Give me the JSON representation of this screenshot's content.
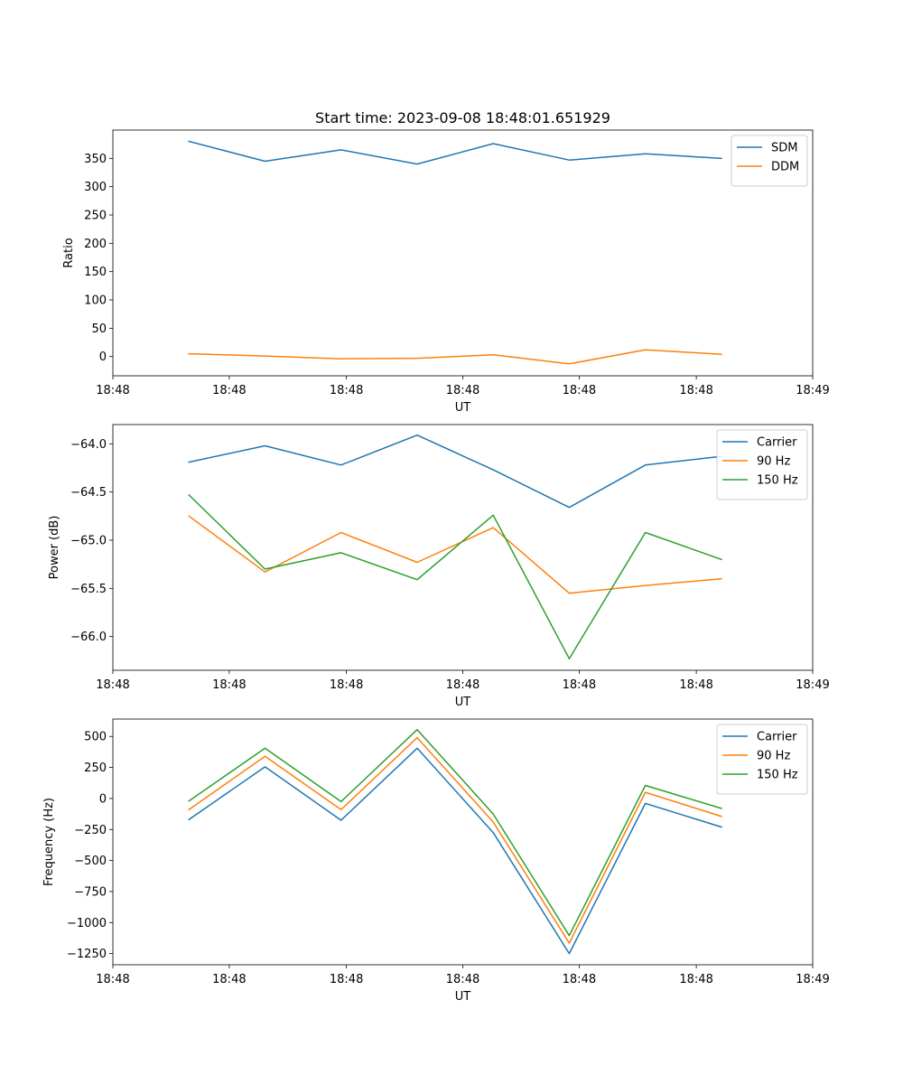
{
  "figure_title": "Start time: 2023-09-08 18:48:01.651929",
  "colors": {
    "c0": "#1f77b4",
    "c1": "#ff7f0e",
    "c2": "#2ca02c"
  },
  "chart_data": [
    {
      "type": "line",
      "title": "Start time: 2023-09-08 18:48:01.651929",
      "xlabel": "UT",
      "ylabel": "Ratio",
      "x": [
        1,
        2,
        3,
        4,
        5,
        6,
        7,
        8
      ],
      "xlim": [
        0,
        9.2
      ],
      "x_ticks": [
        {
          "value": 0,
          "label": "18:48"
        },
        {
          "value": 1.53,
          "label": "18:48"
        },
        {
          "value": 3.07,
          "label": "18:48"
        },
        {
          "value": 4.6,
          "label": "18:48"
        },
        {
          "value": 6.13,
          "label": "18:48"
        },
        {
          "value": 7.67,
          "label": "18:48"
        },
        {
          "value": 9.2,
          "label": "18:49"
        }
      ],
      "ylim": [
        -34,
        400
      ],
      "y_ticks": [
        {
          "value": 350,
          "label": "350"
        },
        {
          "value": 300,
          "label": "300"
        },
        {
          "value": 250,
          "label": "250"
        },
        {
          "value": 200,
          "label": "200"
        },
        {
          "value": 150,
          "label": "150"
        },
        {
          "value": 100,
          "label": "100"
        },
        {
          "value": 50,
          "label": "50"
        },
        {
          "value": 0,
          "label": "0"
        }
      ],
      "legend_position": "top-right",
      "series": [
        {
          "name": "SDM",
          "color": "#1f77b4",
          "values": [
            380,
            345,
            365,
            340,
            376,
            347,
            358,
            350
          ]
        },
        {
          "name": "DDM",
          "color": "#ff7f0e",
          "values": [
            5,
            1,
            -4,
            -3,
            3,
            -13,
            12,
            4
          ]
        }
      ]
    },
    {
      "type": "line",
      "xlabel": "UT",
      "ylabel": "Power (dB)",
      "x": [
        1,
        2,
        3,
        4,
        5,
        6,
        7,
        8
      ],
      "xlim": [
        0,
        9.2
      ],
      "x_ticks": [
        {
          "value": 0,
          "label": "18:48"
        },
        {
          "value": 1.53,
          "label": "18:48"
        },
        {
          "value": 3.07,
          "label": "18:48"
        },
        {
          "value": 4.6,
          "label": "18:48"
        },
        {
          "value": 6.13,
          "label": "18:48"
        },
        {
          "value": 7.67,
          "label": "18:48"
        },
        {
          "value": 9.2,
          "label": "18:49"
        }
      ],
      "ylim": [
        -66.35,
        -63.8
      ],
      "y_ticks": [
        {
          "value": -64.0,
          "label": "−64.0"
        },
        {
          "value": -64.5,
          "label": "−64.5"
        },
        {
          "value": -65.0,
          "label": "−65.0"
        },
        {
          "value": -65.5,
          "label": "−65.5"
        },
        {
          "value": -66.0,
          "label": "−66.0"
        }
      ],
      "legend_position": "top-right",
      "series": [
        {
          "name": "Carrier",
          "color": "#1f77b4",
          "values": [
            -64.19,
            -64.02,
            -64.22,
            -63.91,
            -64.27,
            -64.66,
            -64.22,
            -64.13
          ]
        },
        {
          "name": "90 Hz",
          "color": "#ff7f0e",
          "values": [
            -64.75,
            -65.33,
            -64.92,
            -65.23,
            -64.87,
            -65.55,
            -65.47,
            -65.4
          ]
        },
        {
          "name": "150 Hz",
          "color": "#2ca02c",
          "values": [
            -64.53,
            -65.3,
            -65.13,
            -65.41,
            -64.74,
            -66.23,
            -64.92,
            -65.2
          ]
        }
      ]
    },
    {
      "type": "line",
      "xlabel": "UT",
      "ylabel": "Frequency (Hz)",
      "x": [
        1,
        2,
        3,
        4,
        5,
        6,
        7,
        8
      ],
      "xlim": [
        0,
        9.2
      ],
      "x_ticks": [
        {
          "value": 0,
          "label": "18:48"
        },
        {
          "value": 1.53,
          "label": "18:48"
        },
        {
          "value": 3.07,
          "label": "18:48"
        },
        {
          "value": 4.6,
          "label": "18:48"
        },
        {
          "value": 6.13,
          "label": "18:48"
        },
        {
          "value": 7.67,
          "label": "18:48"
        },
        {
          "value": 9.2,
          "label": "18:49"
        }
      ],
      "ylim": [
        -1340,
        640
      ],
      "y_ticks": [
        {
          "value": 500,
          "label": "500"
        },
        {
          "value": 250,
          "label": "250"
        },
        {
          "value": 0,
          "label": "0"
        },
        {
          "value": -250,
          "label": "−250"
        },
        {
          "value": -500,
          "label": "−500"
        },
        {
          "value": -750,
          "label": "−750"
        },
        {
          "value": -1000,
          "label": "−1000"
        },
        {
          "value": -1250,
          "label": "−1250"
        }
      ],
      "legend_position": "top-right",
      "series": [
        {
          "name": "Carrier",
          "color": "#1f77b4",
          "values": [
            -170,
            255,
            -175,
            405,
            -275,
            -1250,
            -40,
            -230
          ]
        },
        {
          "name": "90 Hz",
          "color": "#ff7f0e",
          "values": [
            -90,
            340,
            -90,
            490,
            -190,
            -1165,
            50,
            -145
          ]
        },
        {
          "name": "150 Hz",
          "color": "#2ca02c",
          "values": [
            -20,
            405,
            -25,
            555,
            -125,
            -1105,
            105,
            -80
          ]
        }
      ]
    }
  ]
}
